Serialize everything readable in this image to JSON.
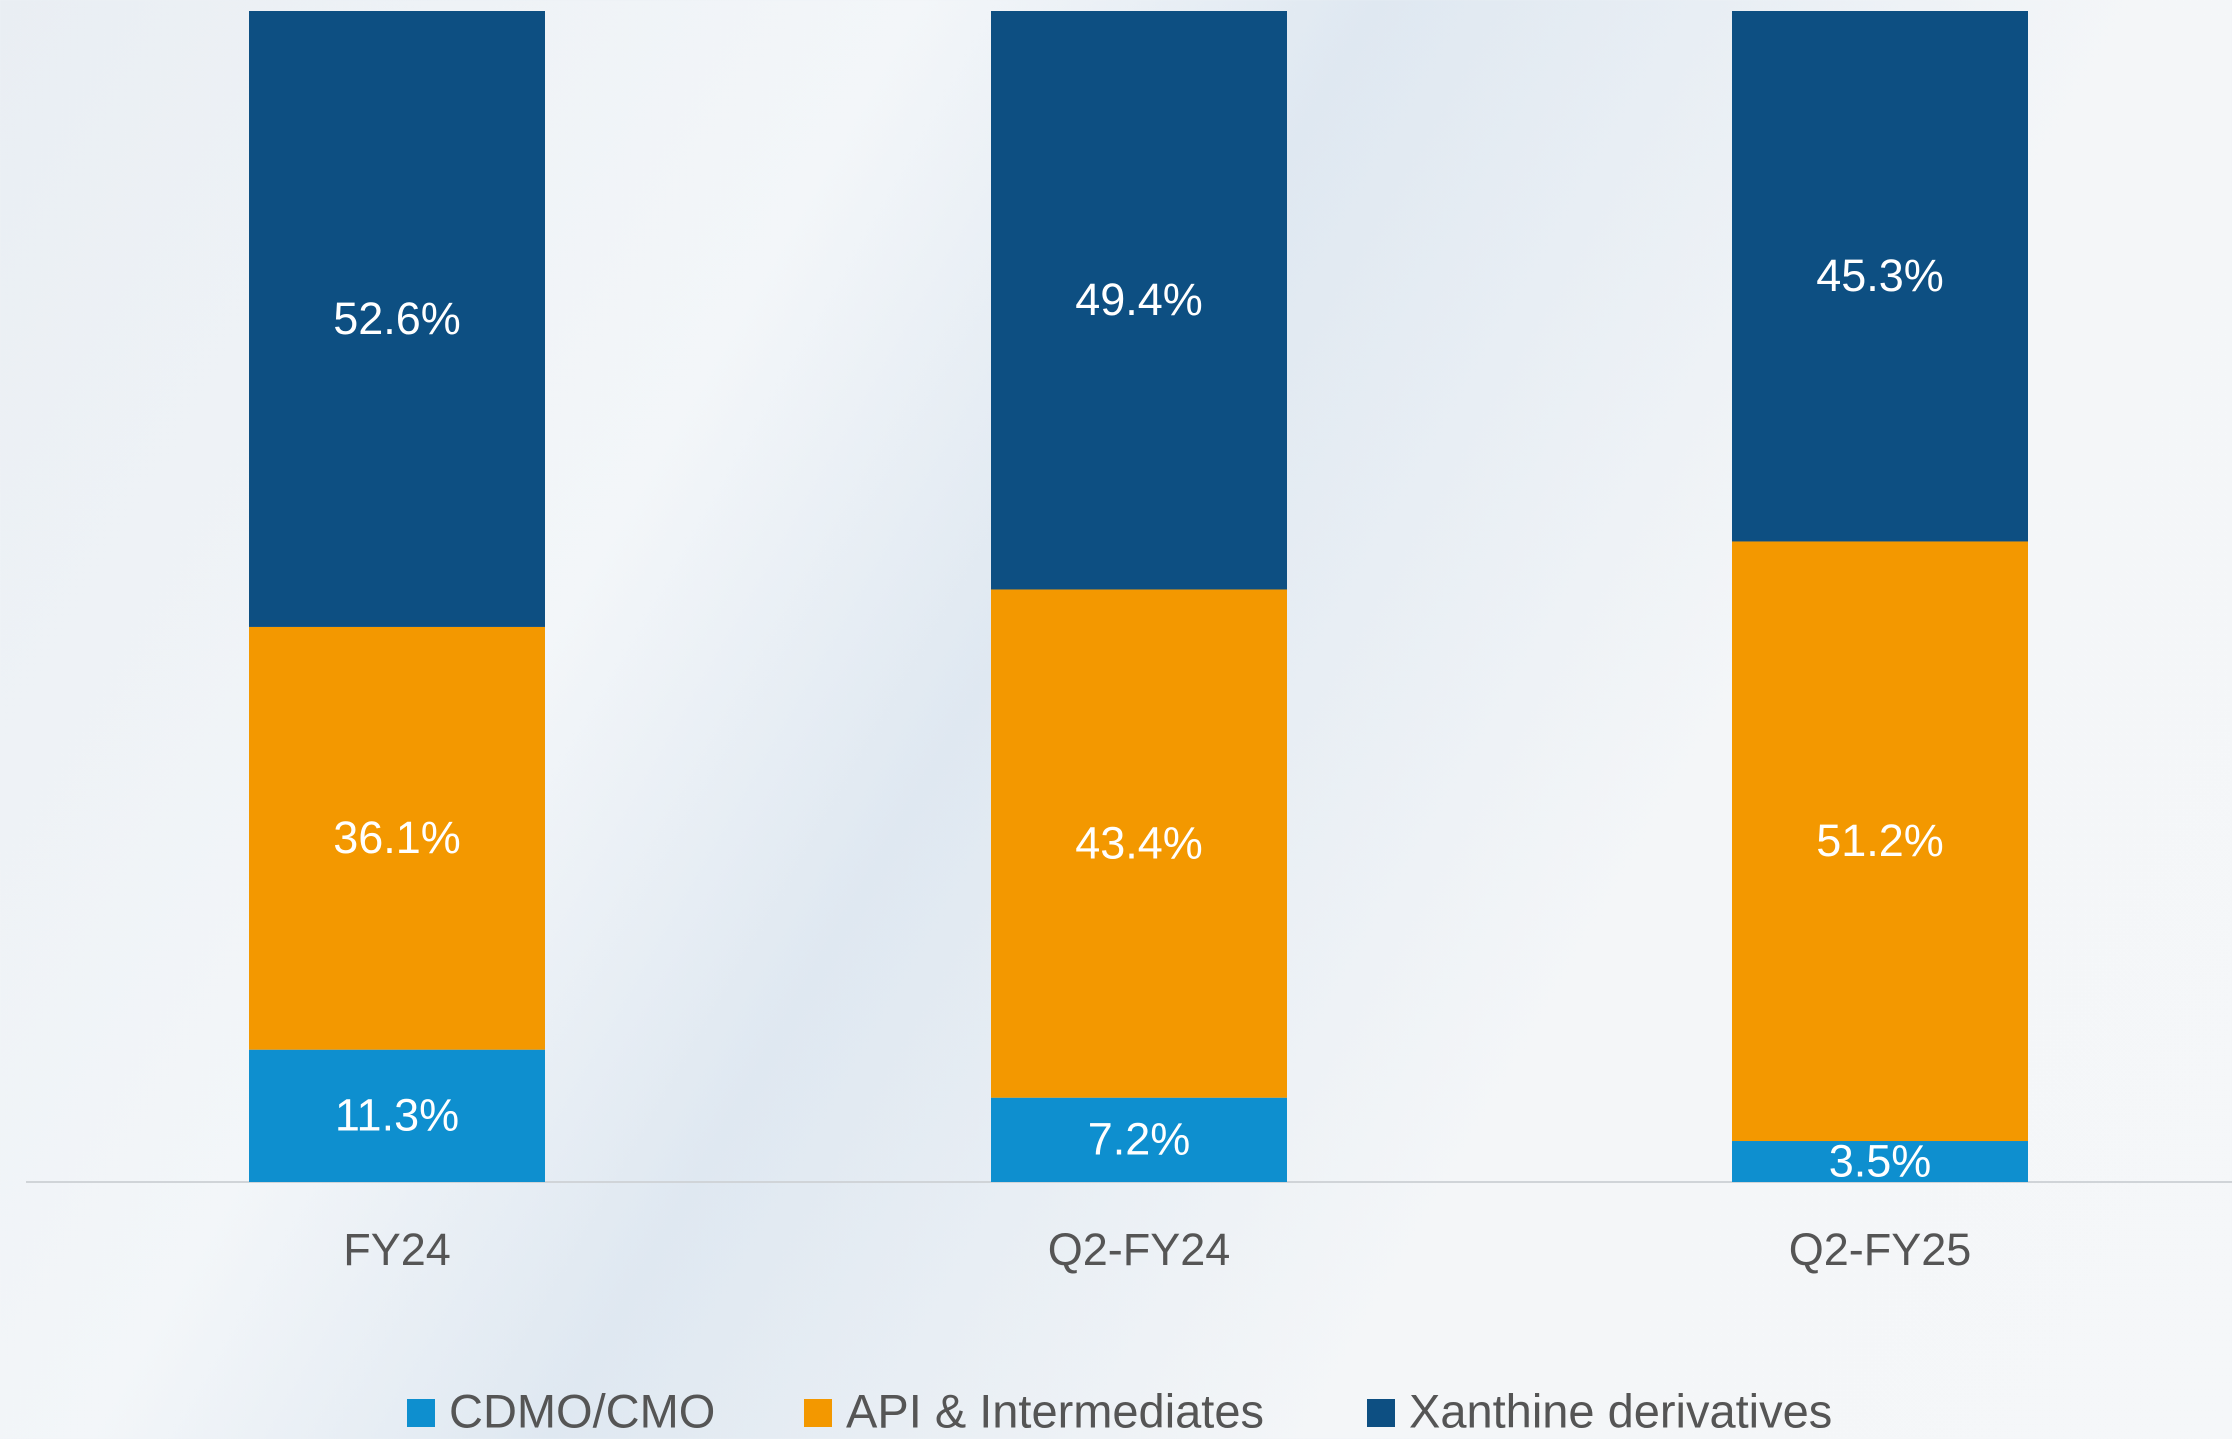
{
  "chart_data": {
    "type": "stacked-bar",
    "categories": [
      "FY24",
      "Q2-FY24",
      "Q2-FY25"
    ],
    "series": [
      {
        "name": "CDMO/CMO",
        "color": "#0e8fcf",
        "values": [
          11.3,
          7.2,
          3.5
        ],
        "value_labels": [
          "11.3%",
          "7.2%",
          "3.5%"
        ]
      },
      {
        "name": "API & Intermediates",
        "color": "#f39800",
        "values": [
          36.1,
          43.4,
          51.2
        ],
        "value_labels": [
          "36.1%",
          "43.4%",
          "51.2%"
        ]
      },
      {
        "name": "Xanthine derivatives",
        "color": "#0d4f82",
        "values": [
          52.6,
          49.4,
          45.3
        ],
        "value_labels": [
          "52.6%",
          "49.4%",
          "45.3%"
        ]
      }
    ],
    "ylim": [
      0,
      100
    ],
    "legend": "bottom"
  }
}
